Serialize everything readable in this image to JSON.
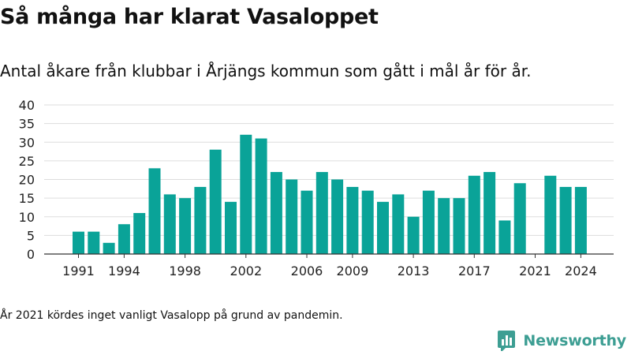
{
  "title": "Så många har klarat Vasaloppet",
  "subtitle": "Antal åkare från klubbar i Årjängs kommun som gått i mål år för år.",
  "note": "År 2021 kördes inget vanligt Vasalopp på grund av pandemin.",
  "brand": {
    "name": "Newsworthy",
    "color": "#3d9e93",
    "icon": "bar-chart-icon"
  },
  "chart_data": {
    "type": "bar",
    "color": "#0aa398",
    "grid": true,
    "ylim": [
      0,
      40
    ],
    "yticks": [
      0,
      5,
      10,
      15,
      20,
      25,
      30,
      35,
      40
    ],
    "xticks": [
      1991,
      1994,
      1998,
      2002,
      2006,
      2009,
      2013,
      2017,
      2021,
      2024
    ],
    "categories": [
      1991,
      1992,
      1993,
      1994,
      1995,
      1996,
      1997,
      1998,
      1999,
      2000,
      2001,
      2002,
      2003,
      2004,
      2005,
      2006,
      2007,
      2008,
      2009,
      2010,
      2011,
      2012,
      2013,
      2014,
      2015,
      2016,
      2017,
      2018,
      2019,
      2020,
      2021,
      2022,
      2023,
      2024
    ],
    "values": [
      6,
      6,
      3,
      8,
      11,
      23,
      16,
      15,
      18,
      28,
      14,
      32,
      31,
      22,
      20,
      17,
      22,
      20,
      18,
      17,
      14,
      16,
      10,
      17,
      15,
      15,
      21,
      22,
      9,
      19,
      0,
      21,
      18,
      18
    ]
  }
}
